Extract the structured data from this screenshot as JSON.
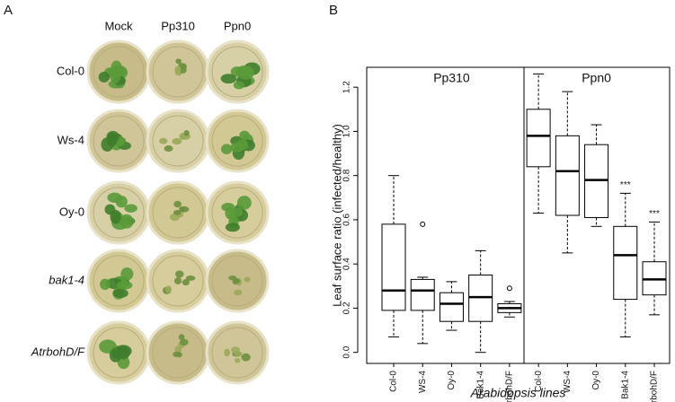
{
  "panel_labels": [
    "A",
    "B"
  ],
  "photo_grid": {
    "columns": [
      "Mock",
      "Pp310",
      "Ppn0"
    ],
    "rows": [
      "Col-0",
      "Ws-4",
      "Oy-0",
      "bak1-4",
      "AtrbohD/F"
    ]
  },
  "chart_data": {
    "type": "boxplot",
    "y_label": "Leaf surface ratio (infected/healthy)",
    "x_label": "Arabidopsis lines",
    "groups": [
      "Pp310",
      "Ppn0"
    ],
    "categories": [
      "Col-0",
      "WS-4",
      "Oy-0",
      "Bak1-4",
      "rbohD/F",
      "Col-0",
      "WS-4",
      "Oy-0",
      "Bak1-4",
      "rbohD/F"
    ],
    "min": [
      0.07,
      0.04,
      0.1,
      0.0,
      0.16,
      0.63,
      0.45,
      0.57,
      0.07,
      0.17
    ],
    "q1": [
      0.19,
      0.19,
      0.14,
      0.14,
      0.18,
      0.84,
      0.62,
      0.61,
      0.24,
      0.26
    ],
    "median": [
      0.28,
      0.28,
      0.22,
      0.25,
      0.2,
      0.98,
      0.82,
      0.78,
      0.44,
      0.33
    ],
    "q3": [
      0.58,
      0.33,
      0.27,
      0.35,
      0.22,
      1.1,
      0.98,
      0.94,
      0.57,
      0.41
    ],
    "max": [
      0.8,
      0.34,
      0.32,
      0.46,
      0.23,
      1.26,
      1.18,
      1.03,
      0.72,
      0.59
    ],
    "outliers": [
      null,
      0.58,
      null,
      null,
      0.29,
      null,
      null,
      null,
      null,
      null
    ],
    "significance": [
      null,
      null,
      null,
      null,
      null,
      null,
      null,
      null,
      "***",
      "***"
    ],
    "ylim": [
      -0.05,
      1.29
    ],
    "yticks": [
      {
        "value": 0,
        "label": "0.0"
      },
      {
        "value": 0.2,
        "label": "0.2"
      },
      {
        "value": 0.4,
        "label": "0.4"
      },
      {
        "value": 0.6,
        "label": "0.6"
      },
      {
        "value": 0.8,
        "label": "0.8"
      },
      {
        "value": 1.0,
        "label": "1.0"
      },
      {
        "value": 1.2,
        "label": "1.2"
      }
    ],
    "color": "#000000"
  }
}
